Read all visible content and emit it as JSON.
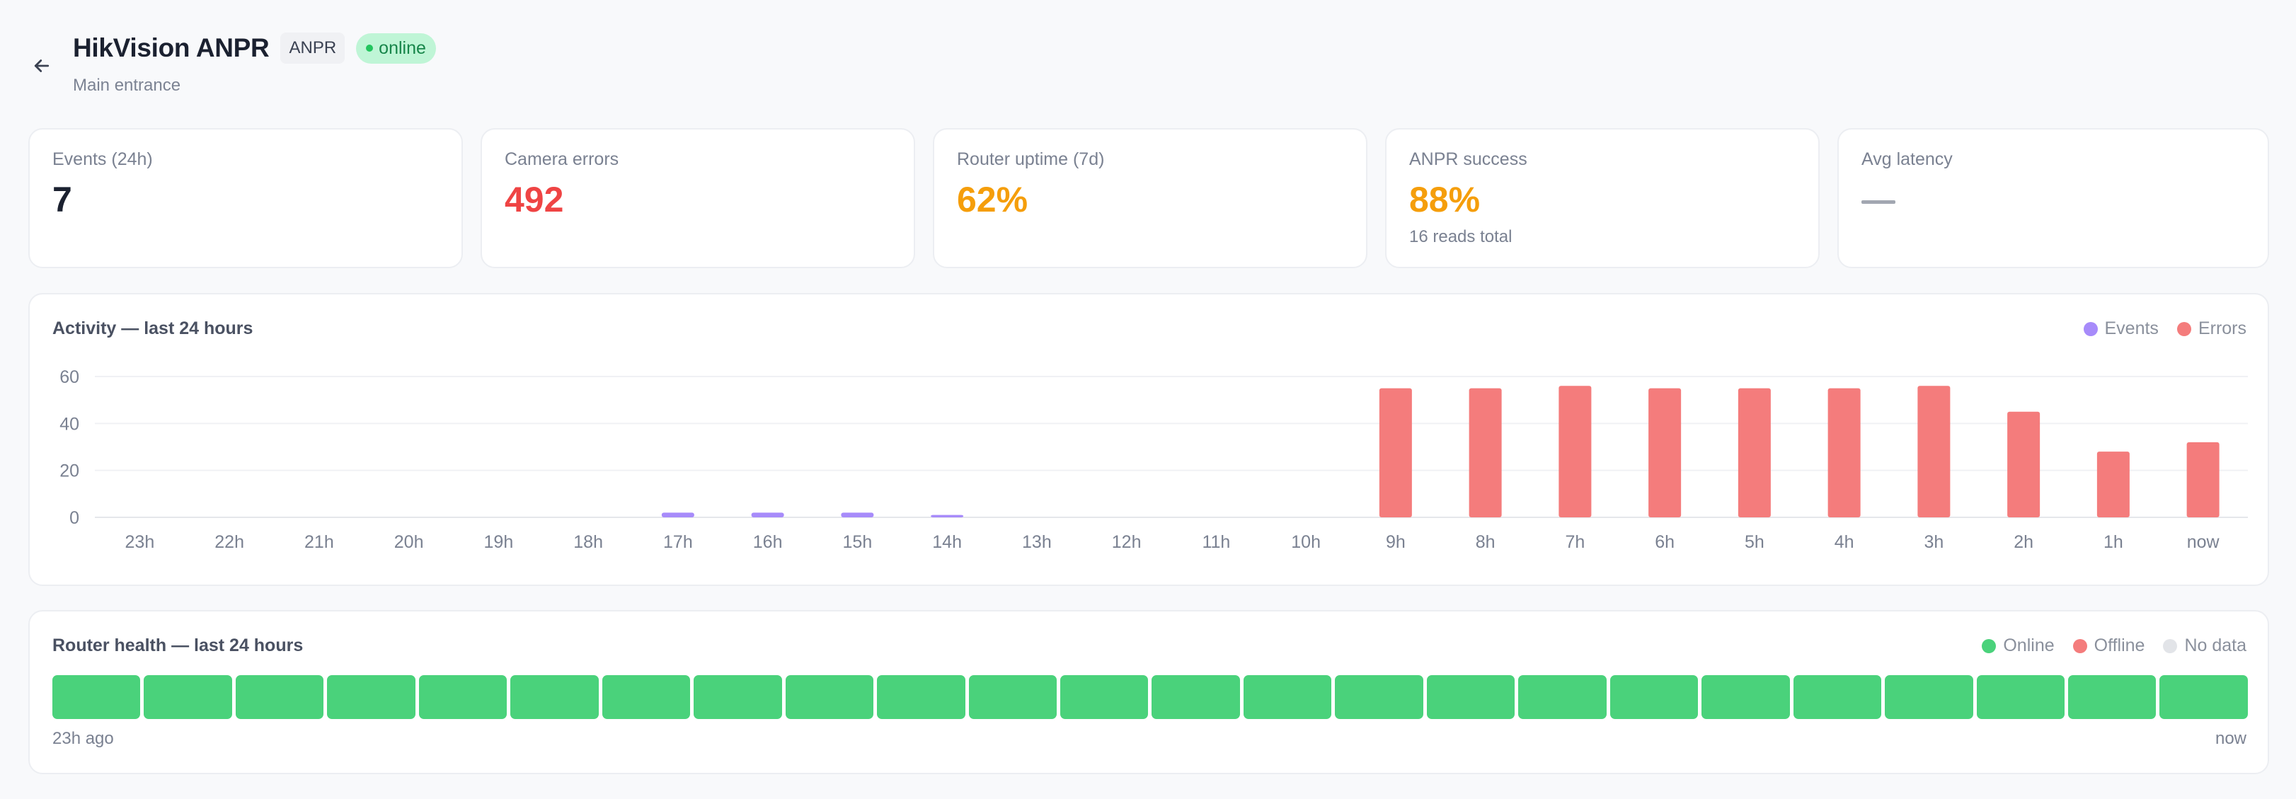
{
  "header": {
    "back_icon": "arrow-left-icon",
    "title": "HikVision ANPR",
    "tag": "ANPR",
    "status": "online",
    "subtitle": "Main entrance"
  },
  "stats": [
    {
      "label": "Events (24h)",
      "value": "7",
      "note": ""
    },
    {
      "label": "Camera errors",
      "value": "492",
      "note": ""
    },
    {
      "label": "Router uptime (7d)",
      "value": "62%",
      "note": ""
    },
    {
      "label": "ANPR success",
      "value": "88%",
      "note": "16 reads total"
    },
    {
      "label": "Avg latency",
      "value": "—",
      "note": ""
    }
  ],
  "colors": {
    "events": "#a78bfa",
    "errors": "#f47c7c",
    "online": "#4ad27b",
    "offline": "#f47c7c",
    "no_data": "#e2e4e8",
    "red": "#ef4444",
    "orange": "#f59e0b"
  },
  "activity": {
    "title": "Activity — last 24 hours",
    "legend": [
      {
        "label": "Events",
        "color": "#a78bfa"
      },
      {
        "label": "Errors",
        "color": "#f47c7c"
      }
    ]
  },
  "chart_data": {
    "type": "bar",
    "title": "Activity — last 24 hours",
    "xlabel": "",
    "ylabel": "",
    "ylim": [
      0,
      60
    ],
    "yticks": [
      0,
      20,
      40,
      60
    ],
    "grid": true,
    "legend_position": "top-right",
    "categories": [
      "23h",
      "22h",
      "21h",
      "20h",
      "19h",
      "18h",
      "17h",
      "16h",
      "15h",
      "14h",
      "13h",
      "12h",
      "11h",
      "10h",
      "9h",
      "8h",
      "7h",
      "6h",
      "5h",
      "4h",
      "3h",
      "2h",
      "1h",
      "now"
    ],
    "series": [
      {
        "name": "Events",
        "color": "#a78bfa",
        "values": [
          0,
          0,
          0,
          0,
          0,
          0,
          2,
          2,
          2,
          1,
          0,
          0,
          0,
          0,
          0,
          0,
          0,
          0,
          0,
          0,
          0,
          0,
          0,
          0
        ]
      },
      {
        "name": "Errors",
        "color": "#f47c7c",
        "values": [
          0,
          0,
          0,
          0,
          0,
          0,
          0,
          0,
          0,
          0,
          0,
          0,
          0,
          0,
          55,
          55,
          56,
          55,
          55,
          55,
          56,
          45,
          28,
          32
        ]
      }
    ]
  },
  "router": {
    "title": "Router health — last 24 hours",
    "legend": [
      {
        "label": "Online",
        "color": "#4ad27b"
      },
      {
        "label": "Offline",
        "color": "#f47c7c"
      },
      {
        "label": "No data",
        "color": "#e2e4e8"
      }
    ],
    "cells": [
      "online",
      "online",
      "online",
      "online",
      "online",
      "online",
      "online",
      "online",
      "online",
      "online",
      "online",
      "online",
      "online",
      "online",
      "online",
      "online",
      "online",
      "online",
      "online",
      "online",
      "online",
      "online",
      "online",
      "online"
    ],
    "start_label": "23h ago",
    "end_label": "now"
  }
}
